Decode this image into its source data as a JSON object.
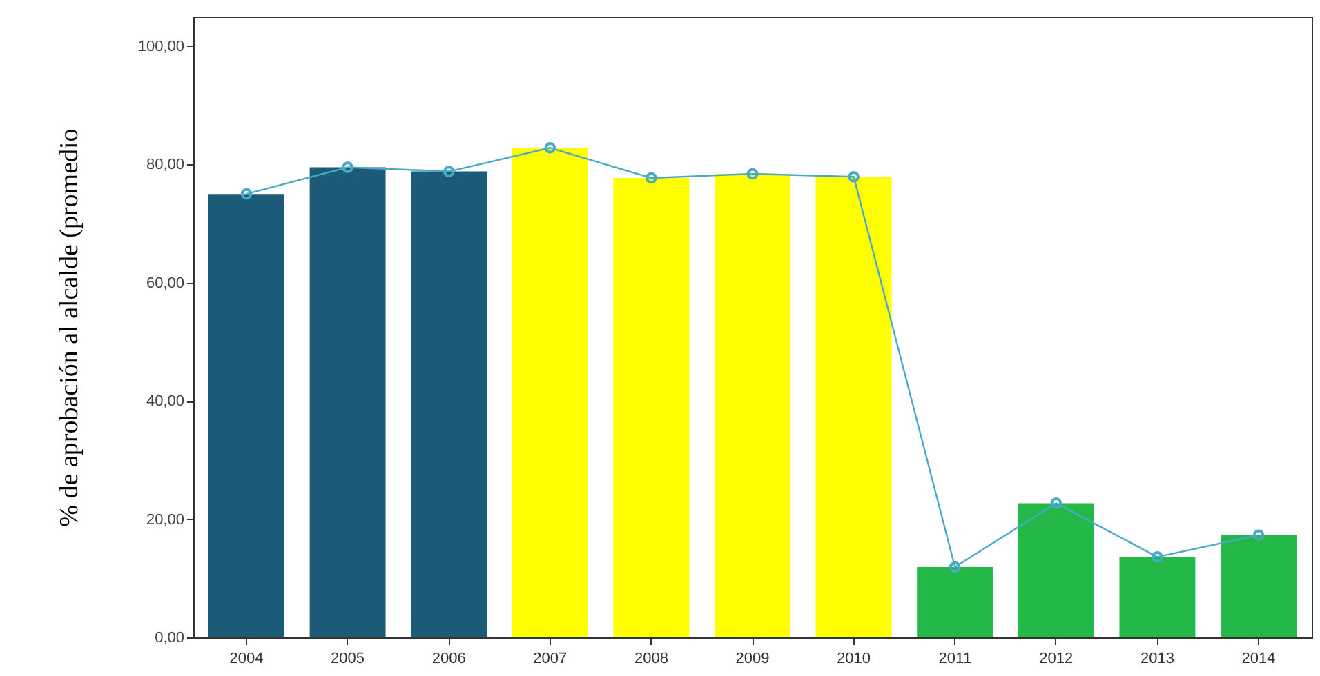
{
  "chart_data": {
    "type": "bar",
    "ylabel": "% de aprobación al alcalde (promedio",
    "categories": [
      "2004",
      "2005",
      "2006",
      "2007",
      "2008",
      "2009",
      "2010",
      "2011",
      "2012",
      "2013",
      "2014"
    ],
    "series": [
      {
        "colors": [
          "#1b5b78",
          "#1b5b78",
          "#1b5b78",
          "#ffff00",
          "#ffff00",
          "#ffff00",
          "#ffff00",
          "#23b847",
          "#23b847",
          "#23b847",
          "#23b847"
        ],
        "values": [
          75.0,
          79.5,
          78.8,
          82.8,
          77.7,
          78.4,
          77.9,
          11.9,
          22.7,
          13.6,
          17.3
        ]
      },
      {
        "type": "line",
        "color": "#4aa8c8",
        "marker": "circle",
        "values": [
          75.0,
          79.5,
          78.8,
          82.8,
          77.7,
          78.4,
          77.9,
          11.9,
          22.7,
          13.6,
          17.3
        ]
      }
    ],
    "ylim": [
      0,
      105
    ],
    "yticks": [
      {
        "value": 0,
        "label": "0,00"
      },
      {
        "value": 20,
        "label": "20,00"
      },
      {
        "value": 40,
        "label": "40,00"
      },
      {
        "value": 60,
        "label": "60,00"
      },
      {
        "value": 80,
        "label": "80,00"
      },
      {
        "value": 100,
        "label": "100,00"
      }
    ]
  }
}
